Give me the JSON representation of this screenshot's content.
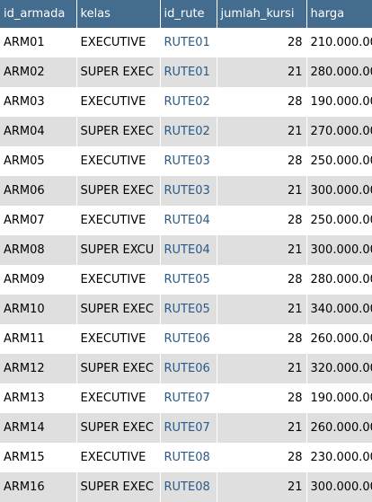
{
  "table": {
    "columns": [
      "id_armada",
      "kelas",
      "id_rute",
      "jumlah_kursi",
      "harga"
    ],
    "rows": [
      [
        "ARM01",
        "EXECUTIVE",
        "RUTE01",
        "28",
        "210.000.00"
      ],
      [
        "ARM02",
        "SUPER EXEC",
        "RUTE01",
        "21",
        "280.000.00"
      ],
      [
        "ARM03",
        "EXECUTIVE",
        "RUTE02",
        "28",
        "190.000.00"
      ],
      [
        "ARM04",
        "SUPER EXEC",
        "RUTE02",
        "21",
        "270.000.00"
      ],
      [
        "ARM05",
        "EXECUTIVE",
        "RUTE03",
        "28",
        "250.000.00"
      ],
      [
        "ARM06",
        "SUPER EXEC",
        "RUTE03",
        "21",
        "300.000.00"
      ],
      [
        "ARM07",
        "EXECUTIVE",
        "RUTE04",
        "28",
        "250.000.00"
      ],
      [
        "ARM08",
        "SUPER EXCU",
        "RUTE04",
        "21",
        "300.000.00"
      ],
      [
        "ARM09",
        "EXECUTIVE",
        "RUTE05",
        "28",
        "280.000.00"
      ],
      [
        "ARM10",
        "SUPER EXEC",
        "RUTE05",
        "21",
        "340.000.00"
      ],
      [
        "ARM11",
        "EXECUTIVE",
        "RUTE06",
        "28",
        "260.000.00"
      ],
      [
        "ARM12",
        "SUPER EXEC",
        "RUTE06",
        "21",
        "320.000.00"
      ],
      [
        "ARM13",
        "EXECUTIVE",
        "RUTE07",
        "28",
        "190.000.00"
      ],
      [
        "ARM14",
        "SUPER EXEC",
        "RUTE07",
        "21",
        "260.000.00"
      ],
      [
        "ARM15",
        "EXECUTIVE",
        "RUTE08",
        "28",
        "230.000.00"
      ],
      [
        "ARM16",
        "SUPER EXEC",
        "RUTE08",
        "21",
        "300.000.00"
      ]
    ]
  },
  "colors": {
    "header_bg": "#436c8f",
    "header_text": "#ffffff",
    "row_alt_bg": "#dfdfdf",
    "link_text": "#2a5a85"
  }
}
